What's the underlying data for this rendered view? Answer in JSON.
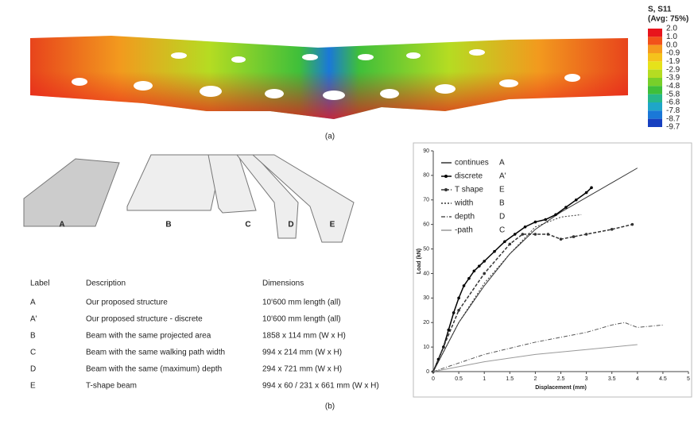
{
  "figure_a": {
    "caption": "(a)",
    "legend_title": "S, S11",
    "legend_subtitle": "(Avg: 75%)",
    "legend_values": [
      "2.0",
      "1.0",
      "0.0",
      "-0.9",
      "-1.9",
      "-2.9",
      "-3.9",
      "-4.8",
      "-5.8",
      "-6.8",
      "-7.8",
      "-8.7",
      "-9.7"
    ],
    "legend_colors": [
      "#e8141c",
      "#f2521a",
      "#f59a1e",
      "#f5c21c",
      "#e6e21a",
      "#b5dc22",
      "#78cf2a",
      "#3fbf3a",
      "#27b78a",
      "#1fa6c8",
      "#1a78d8",
      "#1740c0",
      "#101a9a"
    ]
  },
  "beams": [
    "A",
    "B",
    "C",
    "D",
    "E"
  ],
  "table": {
    "headers": [
      "Label",
      "Description",
      "Dimensions"
    ],
    "rows": [
      [
        "A",
        "Our proposed structure",
        "10'600 mm length (all)"
      ],
      [
        "A'",
        "Our proposed structure - discrete",
        "10'600 mm length (all)"
      ],
      [
        "B",
        "Beam with the same projected area",
        "1858 x 114 mm (W x H)"
      ],
      [
        "C",
        "Beam with the same walking path width",
        "994 x 214 mm (W x H)"
      ],
      [
        "D",
        "Beam with the same (maximum) depth",
        "294 x 721 mm (W x H)"
      ],
      [
        "E",
        "T-shape beam",
        "994 x 60 / 231 x 661 mm (W x H)"
      ]
    ]
  },
  "caption_b": "(b)",
  "chart_data": {
    "type": "line",
    "x_label": "Displacement (mm)",
    "y_label": "Load (kN)",
    "xlim": [
      0,
      5
    ],
    "xticks": [
      0,
      0.5,
      1,
      1.5,
      2,
      2.5,
      3,
      3.5,
      4,
      4.5,
      5
    ],
    "ylim": [
      0,
      90
    ],
    "yticks": [
      0,
      10,
      20,
      30,
      40,
      50,
      60,
      70,
      80,
      90
    ],
    "series": [
      {
        "name": "continues",
        "label": "A",
        "color": "#333333",
        "dash": "none",
        "marker": false,
        "x": [
          0,
          0.5,
          1,
          1.5,
          2,
          2.5,
          3,
          3.5,
          4
        ],
        "values": [
          0,
          20,
          35,
          48,
          58,
          65,
          71,
          77,
          83
        ]
      },
      {
        "name": "discrete",
        "label": "A'",
        "color": "#000000",
        "dash": "none",
        "marker": true,
        "x": [
          0,
          0.1,
          0.2,
          0.3,
          0.4,
          0.5,
          0.6,
          0.7,
          0.8,
          0.9,
          1.0,
          1.2,
          1.4,
          1.6,
          1.8,
          2.0,
          2.2,
          2.4,
          2.6,
          2.8,
          3.0,
          3.1
        ],
        "values": [
          0,
          5,
          10,
          17,
          24,
          30,
          35,
          38,
          41,
          43,
          45,
          49,
          53,
          56,
          59,
          61,
          62,
          64,
          67,
          70,
          73,
          75
        ]
      },
      {
        "name": "T shape",
        "label": "E",
        "color": "#333333",
        "dash": "4 2",
        "marker": true,
        "x": [
          0,
          0.5,
          1,
          1.5,
          1.75,
          2,
          2.25,
          2.5,
          2.75,
          3,
          3.5,
          3.9
        ],
        "values": [
          0,
          25,
          40,
          52,
          56,
          56,
          56,
          54,
          55,
          56,
          58,
          60
        ]
      },
      {
        "name": "width",
        "label": "B",
        "color": "#333333",
        "dash": "2 2",
        "marker": false,
        "x": [
          0,
          0.5,
          1,
          1.5,
          2,
          2.5,
          2.9
        ],
        "values": [
          0,
          20,
          36,
          48,
          59,
          63,
          64
        ]
      },
      {
        "name": "depth",
        "label": "D",
        "color": "#555555",
        "dash": "5 2 1 2",
        "marker": false,
        "x": [
          0,
          1,
          2,
          3,
          3.5,
          3.75,
          4,
          4.5
        ],
        "values": [
          0,
          7,
          12,
          16,
          19,
          20,
          18,
          19
        ]
      },
      {
        "name": "-path",
        "label": "C",
        "color": "#999999",
        "dash": "none",
        "marker": false,
        "x": [
          0,
          1,
          2,
          3,
          4
        ],
        "values": [
          0,
          4,
          7,
          9,
          11
        ]
      }
    ]
  }
}
